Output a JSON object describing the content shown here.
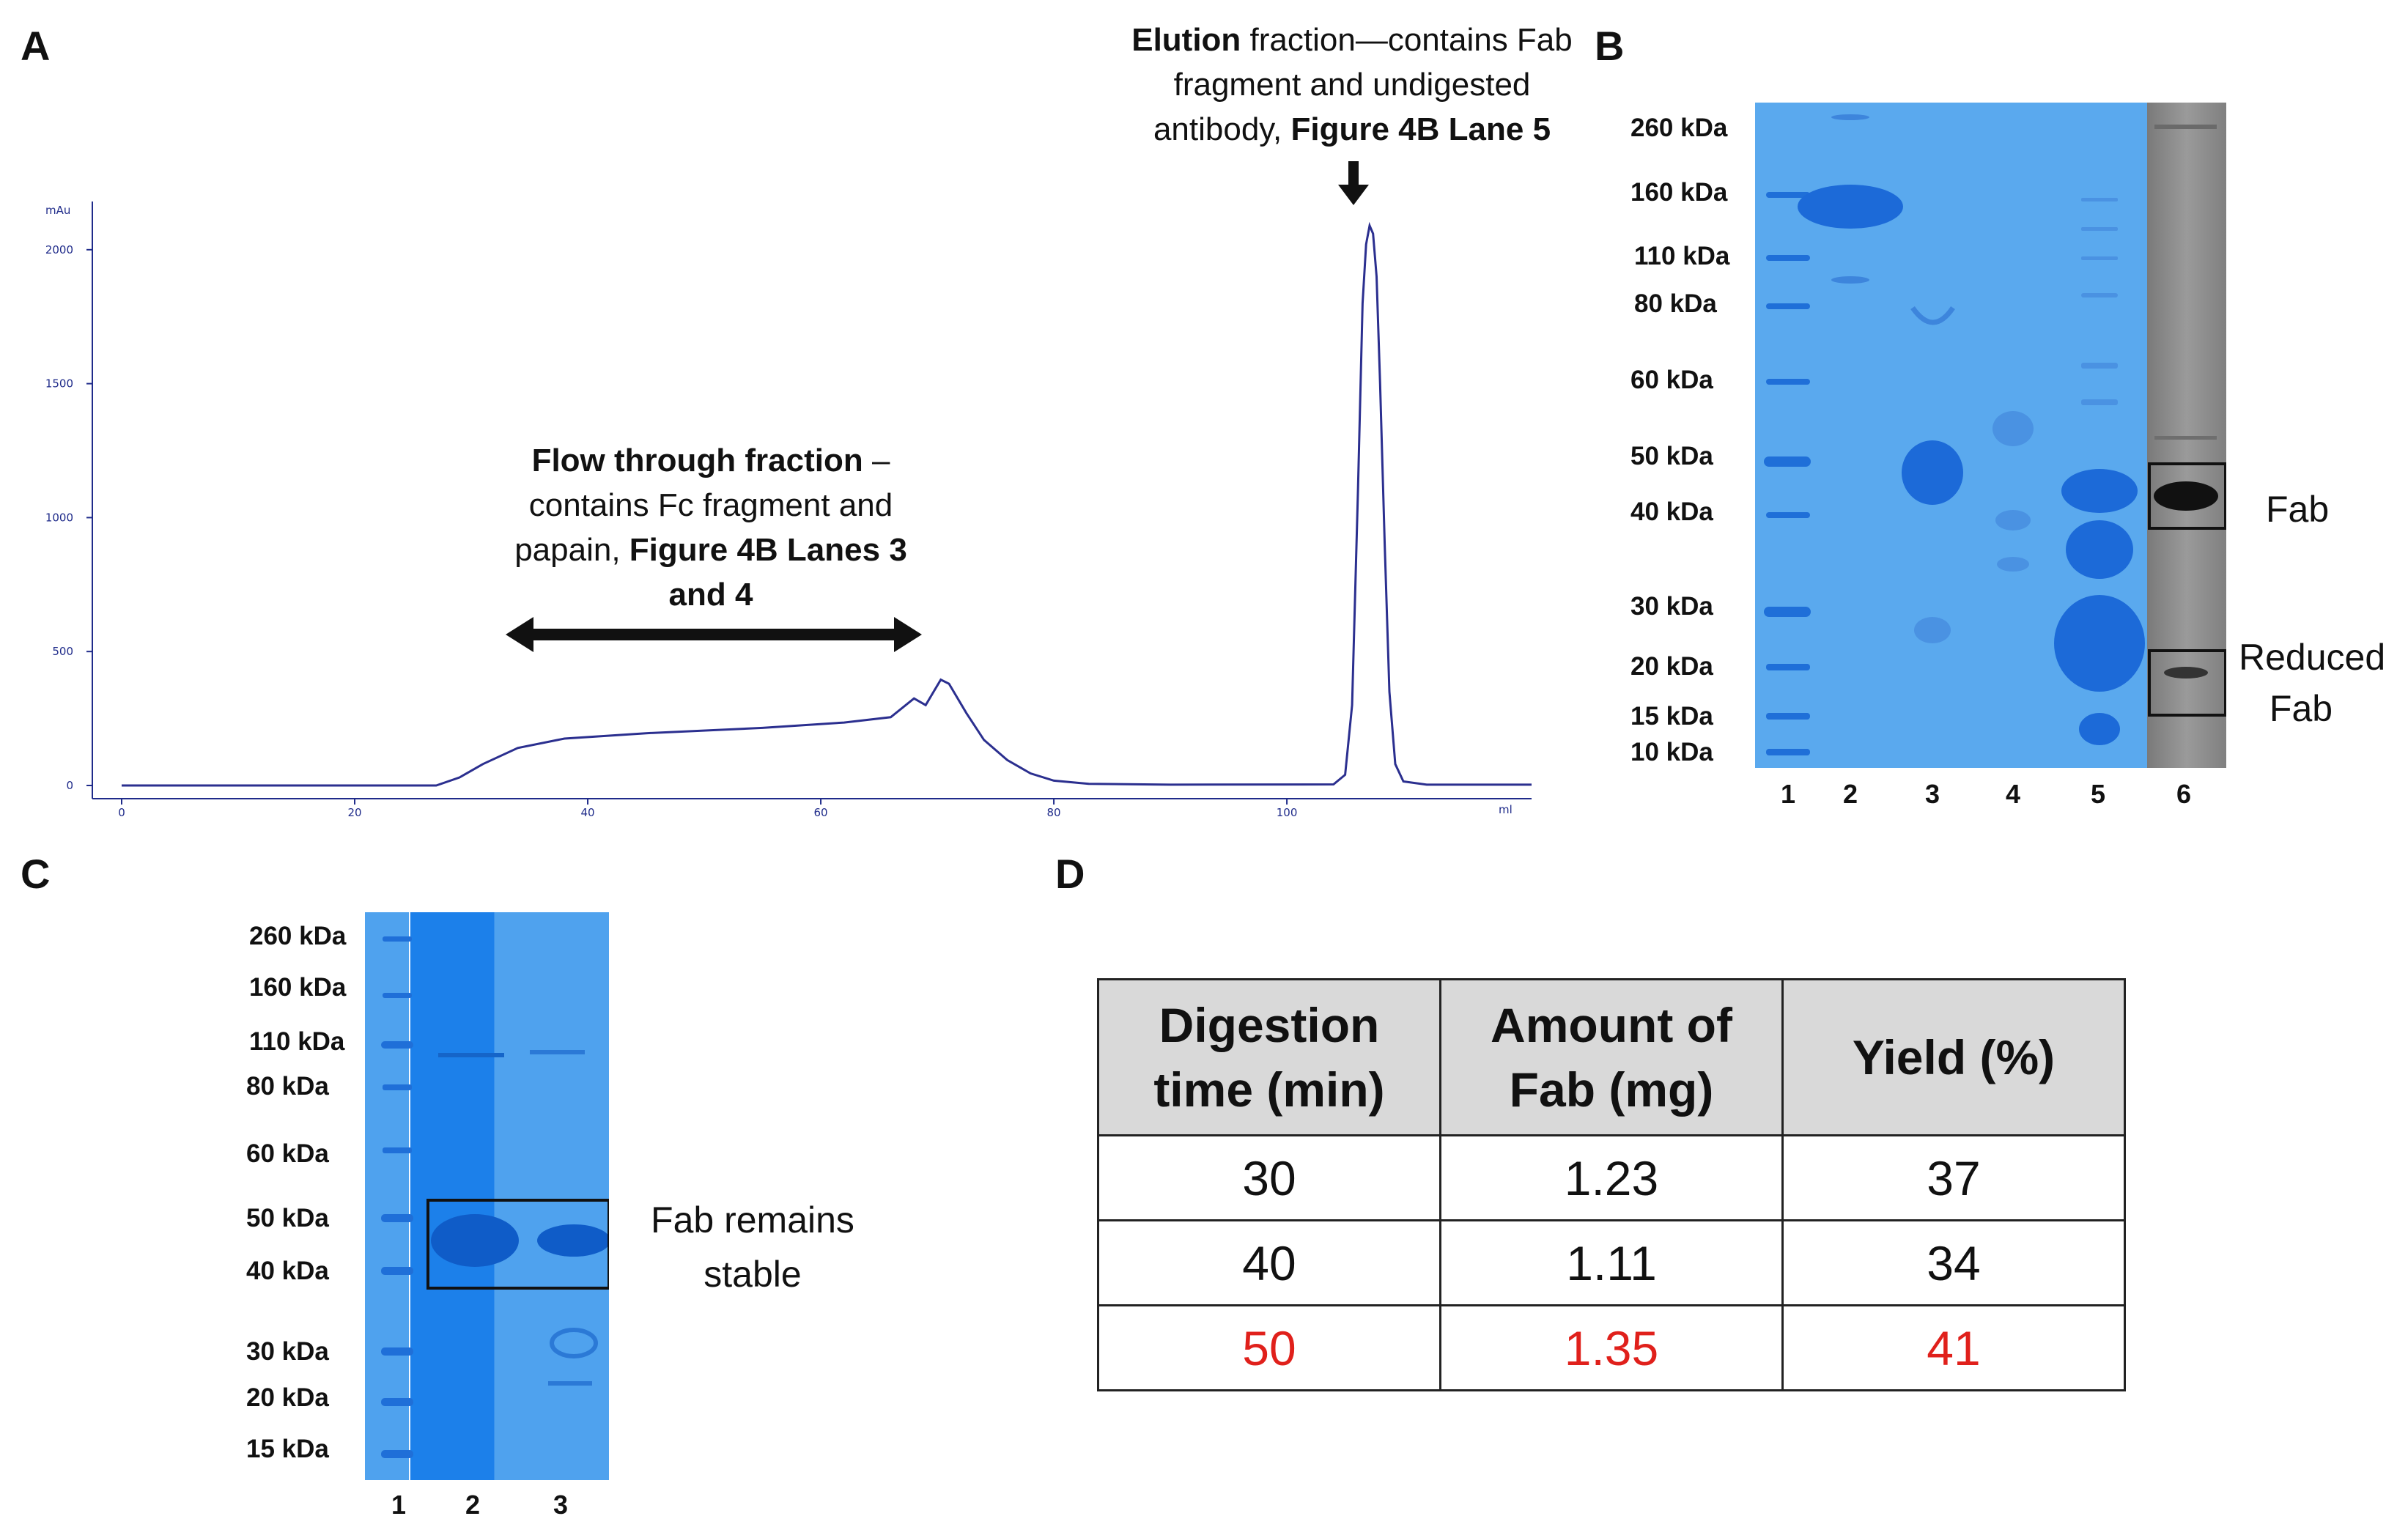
{
  "panels": {
    "a": "A",
    "b": "B",
    "c": "C",
    "d": "D"
  },
  "chromatogram": {
    "ylabel": "mAu",
    "xlabel": "ml",
    "yticks": [
      0,
      500,
      1000,
      1500,
      2000
    ],
    "xticks": [
      0,
      20,
      40,
      60,
      80,
      100
    ],
    "xlim": [
      0,
      121
    ],
    "ylim": [
      0,
      2180
    ],
    "line_color": "#2b2f8f",
    "trace": [
      [
        0,
        0
      ],
      [
        27,
        0
      ],
      [
        29,
        30
      ],
      [
        31,
        80
      ],
      [
        34,
        140
      ],
      [
        38,
        175
      ],
      [
        45,
        195
      ],
      [
        55,
        215
      ],
      [
        62,
        235
      ],
      [
        66,
        255
      ],
      [
        68,
        325
      ],
      [
        69,
        300
      ],
      [
        70.3,
        395
      ],
      [
        71,
        380
      ],
      [
        72.5,
        270
      ],
      [
        74,
        170
      ],
      [
        76,
        95
      ],
      [
        78,
        45
      ],
      [
        80,
        18
      ],
      [
        83,
        6
      ],
      [
        90,
        3
      ],
      [
        104,
        4
      ],
      [
        105,
        40
      ],
      [
        105.6,
        300
      ],
      [
        106.1,
        1100
      ],
      [
        106.5,
        1800
      ],
      [
        106.8,
        2020
      ],
      [
        107.1,
        2090
      ],
      [
        107.4,
        2060
      ],
      [
        107.7,
        1900
      ],
      [
        108,
        1500
      ],
      [
        108.4,
        900
      ],
      [
        108.8,
        350
      ],
      [
        109.3,
        80
      ],
      [
        110,
        15
      ],
      [
        112,
        3
      ],
      [
        121,
        3
      ]
    ],
    "elution_annotation": {
      "bold": "Elution",
      "line1": " fraction—contains Fab",
      "line2": "fragment and undigested",
      "line3": "antibody, ",
      "bold2": "Figure 4B Lane 5"
    },
    "flow_annotation": {
      "bold": "Flow through fraction",
      "line1": " –",
      "line2": "contains Fc fragment and",
      "line3": "papain, ",
      "bold2": "Figure 4B Lanes 3",
      "line4": "and 4"
    }
  },
  "gel_b": {
    "markers": [
      "260 kDa",
      "160 kDa",
      "110 kDa",
      "80 kDa",
      "60 kDa",
      "50 kDa",
      "40 kDa",
      "30 kDa",
      "20 kDa",
      "15 kDa",
      "10 kDa"
    ],
    "lanes": [
      "1",
      "2",
      "3",
      "4",
      "5",
      "6"
    ],
    "fab_label": "Fab",
    "reduced_fab_label_line1": "Reduced",
    "reduced_fab_label_line2": "Fab",
    "gel_color": "#5aa9ee",
    "western_color": "#8c8c8c"
  },
  "gel_c": {
    "markers": [
      "260 kDa",
      "160 kDa",
      "110 kDa",
      "80 kDa",
      "60 kDa",
      "50 kDa",
      "40 kDa",
      "30 kDa",
      "20 kDa",
      "15 kDa"
    ],
    "lanes": [
      "1",
      "2",
      "3"
    ],
    "note_line1": "Fab remains",
    "note_line2": "stable"
  },
  "table_d": {
    "headers": [
      {
        "line1": "Digestion",
        "line2": "time (min)"
      },
      {
        "line1": "Amount of",
        "line2": "Fab (mg)"
      },
      {
        "line1": "Yield (%)",
        "line2": ""
      }
    ],
    "rows": [
      [
        "30",
        "1.23",
        "37"
      ],
      [
        "40",
        "1.11",
        "34"
      ],
      [
        "50",
        "1.35",
        "41"
      ]
    ],
    "highlight_color": "#e0201b"
  }
}
